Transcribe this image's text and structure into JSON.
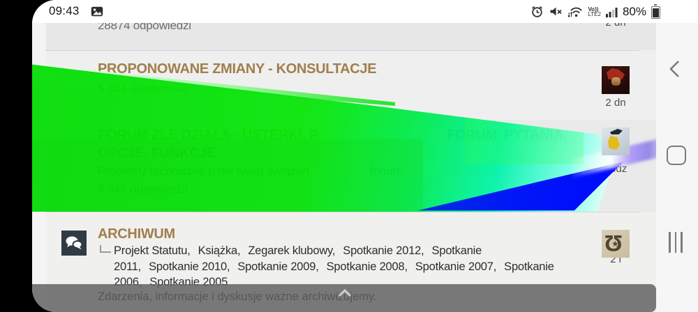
{
  "statusbar": {
    "time": "09:43",
    "volte_line1": "Vo))",
    "volte_line2": "LTE2",
    "battery_percent": "80%"
  },
  "icons": {
    "statusbar_left": [
      "photo-icon"
    ],
    "statusbar_right": [
      "alarm-icon",
      "mute-icon",
      "wifi-icon",
      "volte-lte2-badge",
      "signal-icon",
      "battery-icon"
    ],
    "nav": [
      "back-icon",
      "home-icon",
      "recents-icon"
    ],
    "archiwum_icon": "chat-bubbles-icon",
    "bottom_bar_icon": "chevron-up-icon"
  },
  "colors": {
    "heading": "#a17e4b",
    "glitch_green": "#02dd02",
    "glitch_cyan": "#7dffe8",
    "glitch_blue": "#0008ff",
    "bottom_bar": "#616161"
  },
  "rows": {
    "top": {
      "replies": "28874 odpowiedzi",
      "last_post": "2 dn"
    },
    "proponowane": {
      "title": "PROPONOWANE ZMIANY - KONSULTACJE",
      "replies": "5 334 odpowiedzi",
      "last_post": "2 dn"
    },
    "usterki": {
      "title_visible_start": "FORUM ŹLE DZIAŁA - USTERKI, P",
      "title_visible_mid": "FORUM, PYTANIA,",
      "title_line2": "OPCJE, FUNKCJE",
      "desc_visible_start": "Problemy techniczne (i nie tylko) związan",
      "desc_visible_end": "forum.",
      "replies": "8 946 odpowiedzi",
      "last_post": "godz"
    },
    "archiwum": {
      "title": "ARCHIWUM",
      "subforums": [
        "Projekt Statutu",
        "Książka",
        "Zegarek klubowy",
        "Spotkanie 2012",
        "Spotkanie 2011",
        "Spotkanie 2010",
        "Spotkanie 2009",
        "Spotkanie 2008",
        "Spotkanie 2007",
        "Spotkanie 2006",
        "Spotkanie 2005"
      ],
      "desc": "Zdarzenia, informacje i dyskusje ważne archiwizujemy.",
      "last_post": "2 l"
    }
  }
}
